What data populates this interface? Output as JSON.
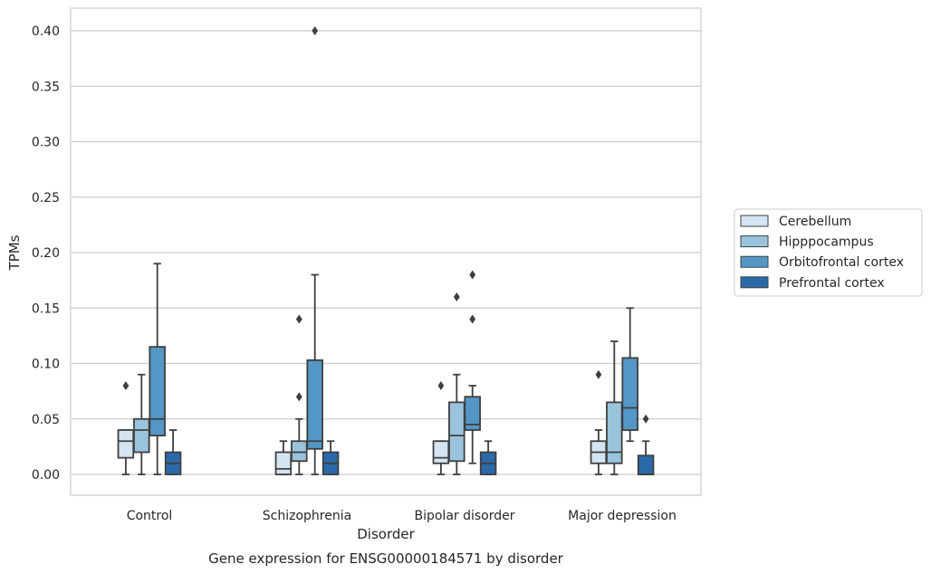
{
  "chart_data": {
    "type": "box",
    "caption": "Gene expression for ENSG00000184571 by disorder",
    "xlabel": "Disorder",
    "ylabel": "TPMs",
    "ylim": [
      -0.02,
      0.42
    ],
    "yticks": [
      "0.00",
      "0.05",
      "0.10",
      "0.15",
      "0.20",
      "0.25",
      "0.30",
      "0.35",
      "0.40"
    ],
    "grid": true,
    "legend_position": "right",
    "categories": [
      "Control",
      "Schizophrenia",
      "Bipolar disorder",
      "Major depression"
    ],
    "series": [
      {
        "name": "Cerebellum",
        "color": "#d5e4f1",
        "boxes": [
          {
            "whislo": 0.0,
            "q1": 0.015,
            "med": 0.03,
            "q3": 0.04,
            "whishi": 0.04,
            "fliers": [
              0.08
            ]
          },
          {
            "whislo": 0.0,
            "q1": 0.0,
            "med": 0.005,
            "q3": 0.02,
            "whishi": 0.03,
            "fliers": []
          },
          {
            "whislo": 0.0,
            "q1": 0.01,
            "med": 0.015,
            "q3": 0.03,
            "whishi": 0.03,
            "fliers": [
              0.08
            ]
          },
          {
            "whislo": 0.0,
            "q1": 0.01,
            "med": 0.02,
            "q3": 0.03,
            "whishi": 0.04,
            "fliers": [
              0.09
            ]
          }
        ]
      },
      {
        "name": "Hipppocampus",
        "color": "#9ac4de",
        "boxes": [
          {
            "whislo": 0.0,
            "q1": 0.02,
            "med": 0.04,
            "q3": 0.05,
            "whishi": 0.09,
            "fliers": []
          },
          {
            "whislo": 0.0,
            "q1": 0.012,
            "med": 0.02,
            "q3": 0.03,
            "whishi": 0.05,
            "fliers": [
              0.14,
              0.07
            ]
          },
          {
            "whislo": 0.0,
            "q1": 0.012,
            "med": 0.035,
            "q3": 0.065,
            "whishi": 0.09,
            "fliers": [
              0.16
            ]
          },
          {
            "whislo": 0.0,
            "q1": 0.01,
            "med": 0.02,
            "q3": 0.065,
            "whishi": 0.12,
            "fliers": []
          }
        ]
      },
      {
        "name": "Orbitofrontal cortex",
        "color": "#5497c7",
        "boxes": [
          {
            "whislo": 0.0,
            "q1": 0.035,
            "med": 0.05,
            "q3": 0.115,
            "whishi": 0.19,
            "fliers": []
          },
          {
            "whislo": 0.0,
            "q1": 0.023,
            "med": 0.03,
            "q3": 0.103,
            "whishi": 0.18,
            "fliers": [
              0.4
            ]
          },
          {
            "whislo": 0.01,
            "q1": 0.04,
            "med": 0.045,
            "q3": 0.07,
            "whishi": 0.08,
            "fliers": [
              0.18,
              0.14
            ]
          },
          {
            "whislo": 0.03,
            "q1": 0.04,
            "med": 0.06,
            "q3": 0.105,
            "whishi": 0.15,
            "fliers": []
          }
        ]
      },
      {
        "name": "Prefrontal cortex",
        "color": "#2a6aa8",
        "boxes": [
          {
            "whislo": 0.0,
            "q1": 0.0,
            "med": 0.01,
            "q3": 0.02,
            "whishi": 0.04,
            "fliers": []
          },
          {
            "whislo": 0.0,
            "q1": 0.0,
            "med": 0.01,
            "q3": 0.02,
            "whishi": 0.03,
            "fliers": []
          },
          {
            "whislo": 0.0,
            "q1": 0.0,
            "med": 0.01,
            "q3": 0.02,
            "whishi": 0.03,
            "fliers": []
          },
          {
            "whislo": 0.0,
            "q1": 0.0,
            "med": 0.0,
            "q3": 0.017,
            "whishi": 0.03,
            "fliers": [
              0.05
            ]
          }
        ]
      }
    ]
  }
}
